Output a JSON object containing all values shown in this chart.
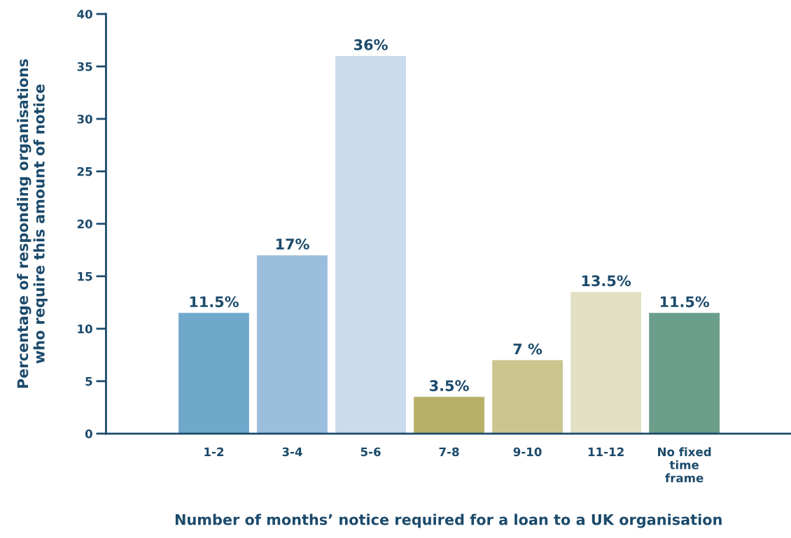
{
  "chart_data": {
    "type": "bar",
    "xlabel": "Number of months’ notice required for a loan to a UK organisation",
    "ylabel": "Percentage of responding organisations\nwho require this amount of notice",
    "categories": [
      "1-2",
      "3-4",
      "5-6",
      "7-8",
      "9-10",
      "11-12",
      "No fixed\ntime\nframe"
    ],
    "values": [
      11.5,
      17,
      36,
      3.5,
      7,
      13.5,
      11.5
    ],
    "value_labels": [
      "11.5%",
      "17%",
      "36%",
      "3.5%",
      "7 %",
      "13.5%",
      "11.5%"
    ],
    "colors": [
      "#70a8cc",
      "#9bbedc",
      "#c9dbec",
      "#b8b068",
      "#cbc690",
      "#e2dfc2",
      "#6a9e8a"
    ],
    "ylim": [
      0,
      40
    ],
    "yticks": [
      0,
      5,
      10,
      15,
      20,
      25,
      30,
      35,
      40
    ],
    "grid": false,
    "legend": false
  }
}
